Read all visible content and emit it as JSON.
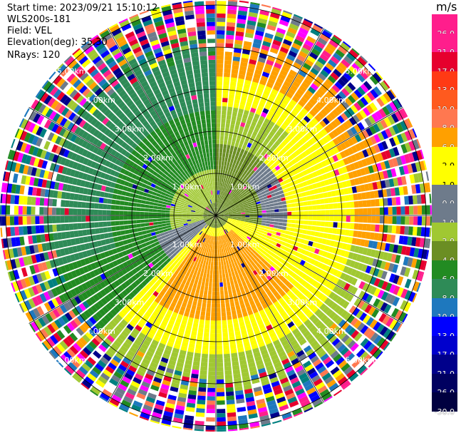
{
  "info": {
    "start_time": "Start time: 2023/09/21 15:10:12",
    "instrument": "WLS200s-181",
    "field": "Field: VEL",
    "elevation": "Elevation(deg): 35.30",
    "nrays": "NRays: 120"
  },
  "colorbar": {
    "unit": "m/s",
    "levels": [
      {
        "label": "26.0",
        "color": "#ff1e8c",
        "light": false
      },
      {
        "label": "21.0",
        "color": "#ff1e8c",
        "light": false
      },
      {
        "label": "17.0",
        "color": "#e6002d",
        "light": false
      },
      {
        "label": "13.0",
        "color": "#ff3a14",
        "light": false
      },
      {
        "label": "10.0",
        "color": "#ff5a1e",
        "light": false
      },
      {
        "label": "8.0",
        "color": "#ff7850",
        "light": false
      },
      {
        "label": "6.0",
        "color": "#ffa000",
        "light": false
      },
      {
        "label": "2.0",
        "color": "#ffff00",
        "light": true
      },
      {
        "label": "1.0",
        "color": "#ffff00",
        "light": true
      },
      {
        "label": "0.0",
        "color": "#6e7b8b",
        "light": false
      },
      {
        "label": "-1.0",
        "color": "#6e7b8b",
        "light": false
      },
      {
        "label": "-2.0",
        "color": "#a0c832",
        "light": false
      },
      {
        "label": "-4.0",
        "color": "#6b8e23",
        "light": false
      },
      {
        "label": "-6.0",
        "color": "#228b22",
        "light": false
      },
      {
        "label": "-8.0",
        "color": "#2e8b57",
        "light": false
      },
      {
        "label": "-10.0",
        "color": "#1e78be",
        "light": false
      },
      {
        "label": "-13.0",
        "color": "#0000ff",
        "light": false
      },
      {
        "label": "-17.0",
        "color": "#0000cd",
        "light": false
      },
      {
        "label": "-21.0",
        "color": "#00008b",
        "light": false
      },
      {
        "label": "-26.0",
        "color": "#000060",
        "light": false
      },
      {
        "label": "-30.0",
        "color": "#000040",
        "light": false
      }
    ]
  },
  "range_rings": [
    {
      "label": "1.00km",
      "km": 1.0
    },
    {
      "label": "2.00km",
      "km": 2.0
    },
    {
      "label": "3.00km",
      "km": 3.0
    },
    {
      "label": "4.00km",
      "km": 4.0
    },
    {
      "label": "5.00km",
      "km": 5.0
    }
  ],
  "palette": {
    "yellow": "#ffff00",
    "orange": "#ffa000",
    "salmon": "#ff7850",
    "grey": "#6e7b8b",
    "lime": "#a0c832",
    "olive": "#6b8e23",
    "green": "#228b22",
    "seagreen": "#2e8b57",
    "steel": "#1e78be",
    "blue": "#0000ff",
    "navy": "#00008b",
    "pink": "#ff1e8c",
    "red": "#e6002d",
    "magenta": "#ff00ff",
    "teal": "#008080"
  }
}
